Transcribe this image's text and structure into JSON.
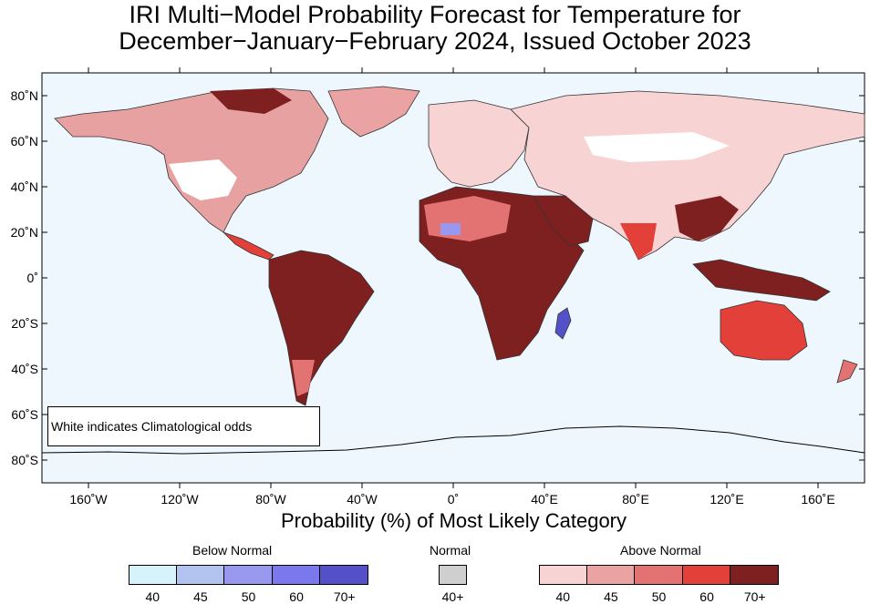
{
  "title_line1": "IRI Multi−Model Probability Forecast for Temperature for",
  "title_line2": "December−January−February 2024, Issued October 2023",
  "map": {
    "lat_labels": [
      "80˚N",
      "60˚N",
      "40˚N",
      "20˚N",
      "0˚",
      "20˚S",
      "40˚S",
      "60˚S",
      "80˚S"
    ],
    "lon_labels": [
      "160˚W",
      "120˚W",
      "80˚W",
      "40˚W",
      "0˚",
      "40˚E",
      "80˚E",
      "120˚E",
      "160˚E"
    ],
    "ocean_color": "#eef7fd",
    "note": "White indicates Climatological odds"
  },
  "xlabel": "Probability (%) of Most Likely Category",
  "legend": {
    "below": {
      "title": "Below Normal",
      "ticks": [
        "40",
        "45",
        "50",
        "60",
        "70+"
      ],
      "colors": [
        "#d6f2fb",
        "#b2c3f0",
        "#9898ef",
        "#7a78ec",
        "#5450c8"
      ]
    },
    "normal": {
      "title": "Normal",
      "ticks": [
        "40+"
      ],
      "colors": [
        "#cfcfcf"
      ]
    },
    "above": {
      "title": "Above Normal",
      "ticks": [
        "40",
        "45",
        "50",
        "60",
        "70+"
      ],
      "colors": [
        "#f8d3d3",
        "#eba2a2",
        "#e37272",
        "#e3403a",
        "#7f2020"
      ]
    }
  }
}
